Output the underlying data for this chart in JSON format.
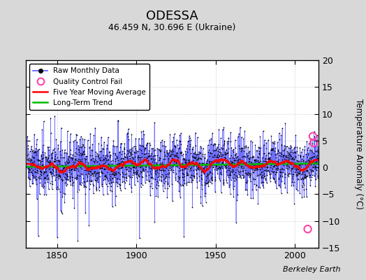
{
  "title": "ODESSA",
  "subtitle": "46.459 N, 30.696 E (Ukraine)",
  "ylabel": "Temperature Anomaly (°C)",
  "attribution": "Berkeley Earth",
  "start_year": 1831,
  "end_year": 2014,
  "ylim": [
    -15,
    20
  ],
  "xlim": [
    1830,
    2015
  ],
  "yticks": [
    -15,
    -10,
    -5,
    0,
    5,
    10,
    15,
    20
  ],
  "xticks": [
    1850,
    1900,
    1950,
    2000
  ],
  "bg_color": "#d8d8d8",
  "plot_bg_color": "#ffffff",
  "raw_color": "#5555ff",
  "dot_color": "#000000",
  "ma_color": "#ff0000",
  "trend_color": "#00bb00",
  "qc_color": "#ff44aa",
  "seed": 42,
  "qc_fails": [
    {
      "year": 2008.25,
      "value": -11.5
    },
    {
      "year": 2011.5,
      "value": 5.8
    },
    {
      "year": 2012.0,
      "value": 4.6
    }
  ]
}
